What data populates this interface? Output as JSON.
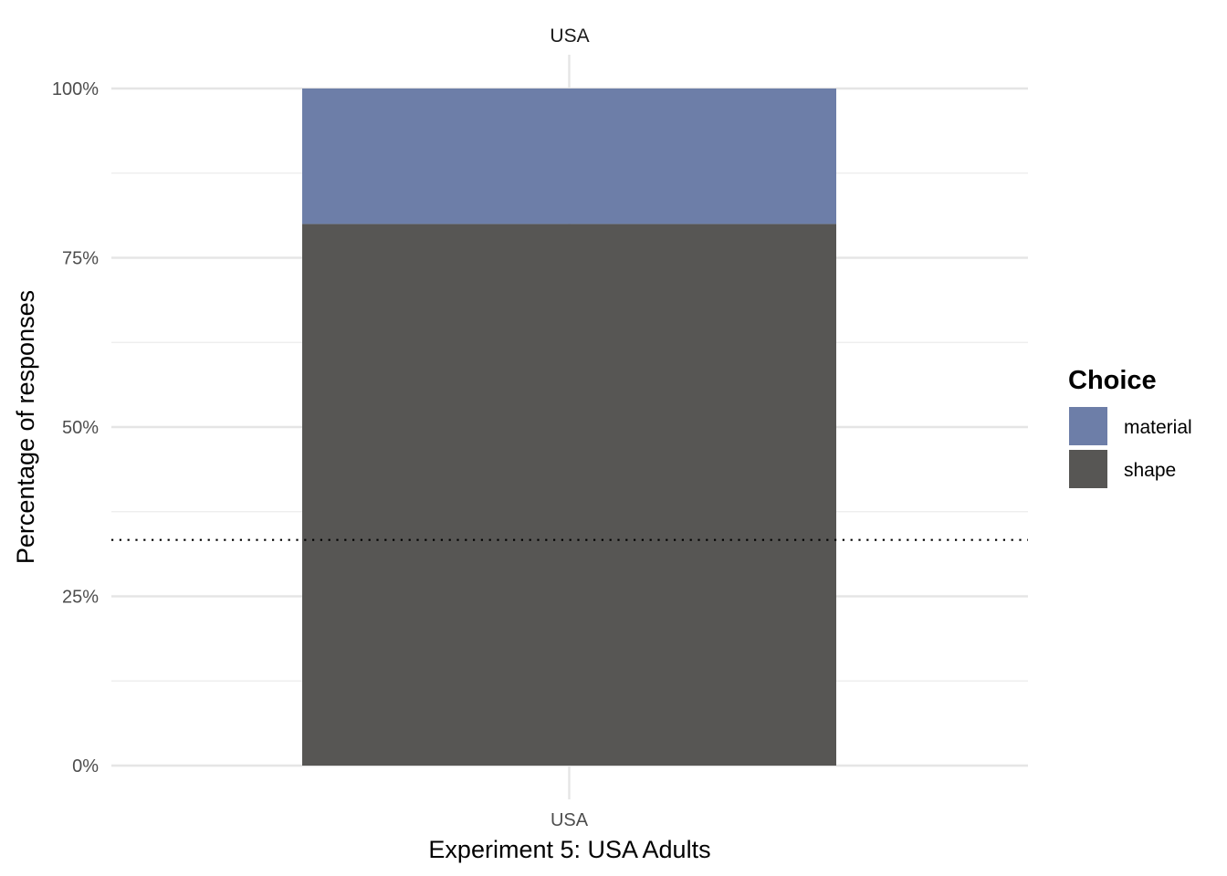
{
  "chart_data": {
    "type": "bar",
    "stacked": true,
    "facet_label": "USA",
    "categories": [
      "USA"
    ],
    "series": [
      {
        "name": "shape",
        "values": [
          80
        ],
        "color": "#575654"
      },
      {
        "name": "material",
        "values": [
          20
        ],
        "color": "#6D7EA8"
      }
    ],
    "xlabel": "Experiment 5: USA Adults",
    "ylabel": "Percentage of responses",
    "ylim": [
      0,
      100
    ],
    "yticks": [
      0,
      25,
      50,
      75,
      100
    ],
    "ytick_labels": [
      "0%",
      "25%",
      "50%",
      "75%",
      "100%"
    ],
    "reference_line": {
      "y": 33.33,
      "style": "dotted"
    },
    "grid": true,
    "legend": {
      "title": "Choice",
      "placement": "right",
      "entries": [
        {
          "label": "material",
          "color": "#6D7EA8"
        },
        {
          "label": "shape",
          "color": "#575654"
        }
      ]
    }
  }
}
